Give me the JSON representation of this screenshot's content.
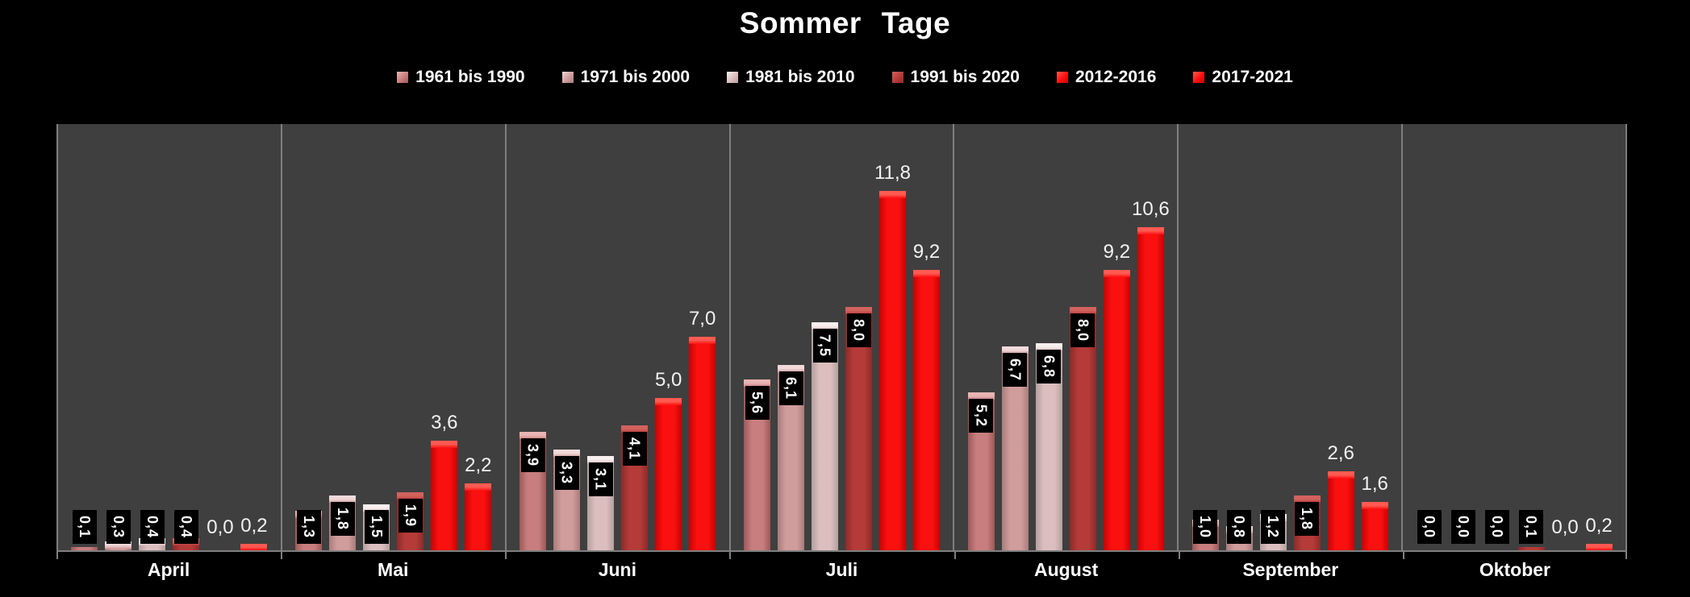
{
  "title": "Sommer Tage",
  "colors": {
    "page_background": "#000000",
    "plot_background": "#3f3f3f",
    "grid_and_border": "#7f7f7f",
    "title_text": "#ffffff",
    "data_label_box": "#000000",
    "data_label_text": "#ffffff",
    "plain_label_text": "#f2f2f2"
  },
  "chart_data": {
    "type": "bar",
    "title": "Sommer Tage",
    "xlabel": "",
    "ylabel": "",
    "ylim": [
      0,
      14
    ],
    "y_axis_ticks_visible": false,
    "grid": "vertical-category-separators",
    "legend_position": "top",
    "decimal_separator": ",",
    "categories": [
      "April",
      "Mai",
      "Juni",
      "Juli",
      "August",
      "September",
      "Oktober"
    ],
    "series": [
      {
        "name": "1961 bis 1990",
        "values": [
          0.1,
          1.3,
          3.9,
          5.6,
          5.2,
          1.0,
          0.0
        ],
        "labels": [
          "0,1",
          "1,3",
          "3,9",
          "5,6",
          "5,2",
          "1,0",
          "0,0"
        ],
        "label_style": "boxed-vertical",
        "color_mid": "#c87e7e",
        "color_edge": "#9d5858",
        "color_cap": "#e9b4b4"
      },
      {
        "name": "1971 bis 2000",
        "values": [
          0.3,
          1.8,
          3.3,
          6.1,
          6.7,
          0.8,
          0.0
        ],
        "labels": [
          "0,3",
          "1,8",
          "3,3",
          "6,1",
          "6,7",
          "0,8",
          "0,0"
        ],
        "label_style": "boxed-vertical",
        "color_mid": "#d19c9c",
        "color_edge": "#a87c7c",
        "color_cap": "#f2dada"
      },
      {
        "name": "1981 bis 2010",
        "values": [
          0.4,
          1.5,
          3.1,
          7.5,
          6.8,
          1.2,
          0.0
        ],
        "labels": [
          "0,4",
          "1,5",
          "3,1",
          "7,5",
          "6,8",
          "1,2",
          "0,0"
        ],
        "label_style": "boxed-vertical",
        "color_mid": "#dcbebe",
        "color_edge": "#b3a0a0",
        "color_cap": "#f8efee"
      },
      {
        "name": "1991 bis 2020",
        "values": [
          0.4,
          1.9,
          4.1,
          8.0,
          8.0,
          1.8,
          0.1
        ],
        "labels": [
          "0,4",
          "1,9",
          "4,1",
          "8,0",
          "8,0",
          "1,8",
          "0,1"
        ],
        "label_style": "boxed-vertical",
        "color_mid": "#b43b38",
        "color_edge": "#8c2b29",
        "color_cap": "#d2625e"
      },
      {
        "name": "2012-2016",
        "values": [
          0.0,
          3.6,
          5.0,
          11.8,
          9.2,
          2.6,
          0.0
        ],
        "labels": [
          "0,0",
          "3,6",
          "5,0",
          "11,8",
          "9,2",
          "2,6",
          "0,0"
        ],
        "label_style": "plain-horizontal",
        "color_mid": "#fb1010",
        "color_edge": "#c80202",
        "color_cap": "#ff5a52"
      },
      {
        "name": "2017-2021",
        "values": [
          0.2,
          2.2,
          7.0,
          9.2,
          10.6,
          1.6,
          0.2
        ],
        "labels": [
          "0,2",
          "2,2",
          "7,0",
          "9,2",
          "10,6",
          "1,6",
          "0,2"
        ],
        "label_style": "plain-horizontal",
        "color_mid": "#fb1010",
        "color_edge": "#c80202",
        "color_cap": "#ff5a52"
      }
    ]
  }
}
